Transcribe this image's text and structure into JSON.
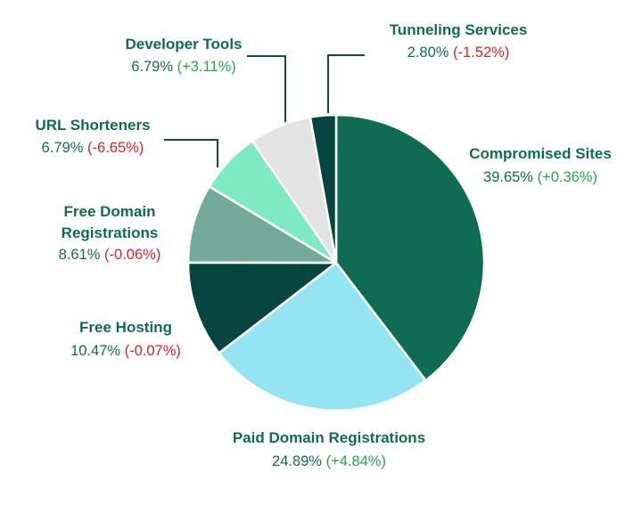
{
  "colors": {
    "label_text": "#0f6b54",
    "positive": "#22a84a",
    "negative": "#e02020",
    "slice_border": "#ffffff",
    "leader_line": "#0f4d42"
  },
  "chart_data": {
    "type": "pie",
    "title": "",
    "unit": "%",
    "start_angle_deg": 0,
    "direction": "clockwise",
    "slices": [
      {
        "name": "Compromised Sites",
        "value": 39.65,
        "value_label": "39.65%",
        "change": 0.36,
        "change_label": "(+0.36%)",
        "color": "#0f6b54"
      },
      {
        "name": "Paid Domain Registrations",
        "value": 24.89,
        "value_label": "24.89%",
        "change": 4.84,
        "change_label": "(+4.84%)",
        "color": "#94e4f2"
      },
      {
        "name": "Free Hosting",
        "value": 10.47,
        "value_label": "10.47%",
        "change": -0.07,
        "change_label": "(-0.07%)",
        "color": "#074541"
      },
      {
        "name": "Free Domain Registrations",
        "value": 8.61,
        "value_label": "8.61%",
        "change": -0.06,
        "change_label": "(-0.06%)",
        "color": "#74a99b"
      },
      {
        "name": "URL Shorteners",
        "value": 6.79,
        "value_label": "6.79%",
        "change": -6.65,
        "change_label": "(-6.65%)",
        "color": "#7eeac4"
      },
      {
        "name": "Developer Tools",
        "value": 6.79,
        "value_label": "6.79%",
        "change": 3.11,
        "change_label": "(+3.11%)",
        "color": "#e3e3e3"
      },
      {
        "name": "Tunneling Services",
        "value": 2.8,
        "value_label": "2.80%",
        "change": -1.52,
        "change_label": "(-1.52%)",
        "color": "#074541"
      }
    ]
  }
}
